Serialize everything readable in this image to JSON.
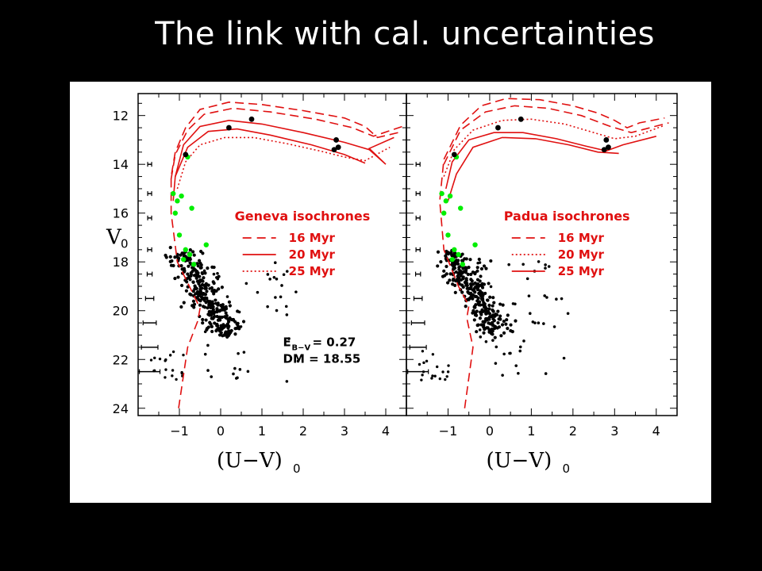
{
  "slide": {
    "title": "The link with cal. uncertainties"
  },
  "colors": {
    "isochrone": "#e01010",
    "highlight": "#00ee00",
    "stars": "#000000",
    "background": "#000000",
    "panel": "#ffffff"
  },
  "chart_data": [
    {
      "type": "scatter",
      "panel": "left",
      "xlabel": "(U−V)",
      "xlabel_sub": "0",
      "ylabel": "V",
      "ylabel_sub": "0",
      "xlim": [
        -2.0,
        4.5
      ],
      "ylim": [
        24.3,
        11.1
      ],
      "x_ticks": [
        "−1",
        "0",
        "1",
        "2",
        "3",
        "4"
      ],
      "y_ticks": [
        "12",
        "14",
        "16",
        "18",
        "20",
        "22",
        "24"
      ],
      "legend_title": "Geneva isochrones",
      "legend": [
        {
          "label": "16 Myr",
          "style": "dashed"
        },
        {
          "label": "20 Myr",
          "style": "solid"
        },
        {
          "label": "25 Myr",
          "style": "dotted"
        }
      ],
      "annotation_ebv_label": "E",
      "annotation_ebv_sub": "B−V",
      "annotation_ebv_value": " = 0.27",
      "annotation_dm": "DM = 18.55",
      "highlighted_stars": [
        {
          "x": -1.15,
          "y": 15.2
        },
        {
          "x": -1.05,
          "y": 15.5
        },
        {
          "x": -0.95,
          "y": 15.3
        },
        {
          "x": -1.1,
          "y": 16.0
        },
        {
          "x": -0.7,
          "y": 15.8
        },
        {
          "x": -1.0,
          "y": 16.9
        },
        {
          "x": -0.85,
          "y": 17.5
        },
        {
          "x": -0.75,
          "y": 17.7
        },
        {
          "x": -0.9,
          "y": 17.9
        },
        {
          "x": -0.65,
          "y": 18.1
        },
        {
          "x": -0.35,
          "y": 17.3
        },
        {
          "x": -0.8,
          "y": 13.7
        }
      ],
      "bright_stars": [
        {
          "x": -0.85,
          "y": 13.6
        },
        {
          "x": 0.2,
          "y": 12.5
        },
        {
          "x": 0.75,
          "y": 12.15
        },
        {
          "x": 2.8,
          "y": 13.0
        },
        {
          "x": 2.75,
          "y": 13.4
        },
        {
          "x": 2.85,
          "y": 13.3
        }
      ],
      "error_bars": [
        {
          "y": 14.0,
          "xerr": 0.03
        },
        {
          "y": 15.2,
          "xerr": 0.03
        },
        {
          "y": 16.2,
          "xerr": 0.04
        },
        {
          "y": 17.5,
          "xerr": 0.05
        },
        {
          "y": 18.5,
          "xerr": 0.06
        },
        {
          "y": 19.5,
          "xerr": 0.1
        },
        {
          "y": 20.5,
          "xerr": 0.16
        },
        {
          "y": 21.5,
          "xerr": 0.2
        },
        {
          "y": 22.5,
          "xerr": 0.25
        }
      ],
      "isochrones": [
        {
          "name": "16 Myr",
          "style": "dashed",
          "points": [
            [
              -1.02,
              24.0
            ],
            [
              -0.8,
              21.5
            ],
            [
              -0.55,
              20.4
            ],
            [
              -0.5,
              19.9
            ],
            [
              -0.7,
              19.2
            ],
            [
              -1.05,
              18.0
            ],
            [
              -1.2,
              16.0
            ],
            [
              -1.2,
              14.5
            ],
            [
              -1.1,
              13.5
            ],
            [
              -0.85,
              12.5
            ],
            [
              -0.5,
              11.75
            ],
            [
              0.2,
              11.45
            ],
            [
              1.0,
              11.55
            ],
            [
              2.0,
              11.8
            ],
            [
              3.0,
              12.1
            ],
            [
              3.5,
              12.45
            ],
            [
              3.8,
              12.9
            ],
            [
              4.3,
              12.7
            ]
          ]
        },
        {
          "name": "16 Myr b",
          "style": "dashed",
          "points": [
            [
              -1.2,
              14.6
            ],
            [
              -1.1,
              13.6
            ],
            [
              -0.8,
              12.6
            ],
            [
              -0.4,
              11.95
            ],
            [
              0.3,
              11.7
            ],
            [
              1.2,
              11.85
            ],
            [
              2.3,
              12.15
            ],
            [
              3.2,
              12.5
            ],
            [
              3.7,
              12.85
            ],
            [
              4.4,
              12.45
            ]
          ]
        },
        {
          "name": "20 Myr",
          "style": "solid",
          "points": [
            [
              -1.15,
              15.5
            ],
            [
              -1.1,
              14.5
            ],
            [
              -0.9,
              13.2
            ],
            [
              -0.5,
              12.45
            ],
            [
              0.2,
              12.2
            ],
            [
              1.0,
              12.35
            ],
            [
              2.0,
              12.7
            ],
            [
              3.0,
              13.1
            ],
            [
              3.6,
              13.4
            ],
            [
              4.0,
              14.0
            ],
            [
              3.6,
              13.35
            ],
            [
              4.2,
              12.9
            ]
          ]
        },
        {
          "name": "20 Myr b",
          "style": "solid",
          "points": [
            [
              -1.1,
              14.5
            ],
            [
              -0.8,
              13.3
            ],
            [
              -0.3,
              12.65
            ],
            [
              0.4,
              12.55
            ],
            [
              1.2,
              12.8
            ],
            [
              2.2,
              13.2
            ],
            [
              3.0,
              13.6
            ],
            [
              3.5,
              13.95
            ]
          ]
        },
        {
          "name": "25 Myr",
          "style": "dotted",
          "points": [
            [
              -1.05,
              15.0
            ],
            [
              -0.85,
              13.9
            ],
            [
              -0.5,
              13.2
            ],
            [
              0.1,
              12.9
            ],
            [
              0.8,
              12.9
            ],
            [
              1.6,
              13.15
            ],
            [
              2.4,
              13.45
            ],
            [
              3.0,
              13.7
            ],
            [
              3.5,
              13.85
            ],
            [
              4.1,
              13.3
            ]
          ]
        }
      ]
    },
    {
      "type": "scatter",
      "panel": "right",
      "xlabel": "(U−V)",
      "xlabel_sub": "0",
      "xlim": [
        -2.0,
        4.5
      ],
      "ylim": [
        24.3,
        11.1
      ],
      "x_ticks": [
        "−1",
        "0",
        "1",
        "2",
        "3",
        "4"
      ],
      "legend_title": "Padua isochrones",
      "legend": [
        {
          "label": "16 Myr",
          "style": "dashed"
        },
        {
          "label": "20 Myr",
          "style": "dotted"
        },
        {
          "label": "25 Myr",
          "style": "solid"
        }
      ],
      "highlighted_stars": [
        {
          "x": -1.15,
          "y": 15.2
        },
        {
          "x": -1.05,
          "y": 15.5
        },
        {
          "x": -0.95,
          "y": 15.3
        },
        {
          "x": -1.1,
          "y": 16.0
        },
        {
          "x": -0.7,
          "y": 15.8
        },
        {
          "x": -1.0,
          "y": 16.9
        },
        {
          "x": -0.85,
          "y": 17.5
        },
        {
          "x": -0.75,
          "y": 17.7
        },
        {
          "x": -0.9,
          "y": 17.9
        },
        {
          "x": -0.65,
          "y": 18.1
        },
        {
          "x": -0.35,
          "y": 17.3
        },
        {
          "x": -0.8,
          "y": 13.7
        }
      ],
      "bright_stars": [
        {
          "x": -0.85,
          "y": 13.6
        },
        {
          "x": 0.2,
          "y": 12.5
        },
        {
          "x": 0.75,
          "y": 12.15
        },
        {
          "x": 2.8,
          "y": 13.0
        },
        {
          "x": 2.75,
          "y": 13.4
        },
        {
          "x": 2.85,
          "y": 13.3
        }
      ],
      "error_bars": [
        {
          "y": 14.0,
          "xerr": 0.03
        },
        {
          "y": 15.2,
          "xerr": 0.03
        },
        {
          "y": 16.2,
          "xerr": 0.04
        },
        {
          "y": 17.5,
          "xerr": 0.05
        },
        {
          "y": 18.5,
          "xerr": 0.06
        },
        {
          "y": 19.5,
          "xerr": 0.1
        },
        {
          "y": 20.5,
          "xerr": 0.16
        },
        {
          "y": 21.5,
          "xerr": 0.2
        },
        {
          "y": 22.5,
          "xerr": 0.25
        }
      ],
      "isochrones": [
        {
          "name": "16 Myr",
          "style": "dashed",
          "points": [
            [
              -0.6,
              24.0
            ],
            [
              -0.4,
              21.5
            ],
            [
              -0.55,
              20.3
            ],
            [
              -0.5,
              19.8
            ],
            [
              -0.75,
              19.0
            ],
            [
              -1.1,
              17.5
            ],
            [
              -1.2,
              15.5
            ],
            [
              -1.1,
              13.8
            ],
            [
              -0.7,
              12.4
            ],
            [
              -0.2,
              11.6
            ],
            [
              0.4,
              11.3
            ],
            [
              1.2,
              11.35
            ],
            [
              2.0,
              11.6
            ],
            [
              2.6,
              11.9
            ],
            [
              3.0,
              12.2
            ],
            [
              3.3,
              12.5
            ],
            [
              3.6,
              12.3
            ],
            [
              4.2,
              12.1
            ]
          ]
        },
        {
          "name": "16 Myr b",
          "style": "dashed",
          "points": [
            [
              -1.1,
              14.0
            ],
            [
              -0.7,
              12.6
            ],
            [
              -0.1,
              11.85
            ],
            [
              0.6,
              11.6
            ],
            [
              1.4,
              11.7
            ],
            [
              2.2,
              12.0
            ],
            [
              2.9,
              12.45
            ],
            [
              3.4,
              12.7
            ],
            [
              4.3,
              12.3
            ]
          ]
        },
        {
          "name": "20 Myr",
          "style": "dotted",
          "points": [
            [
              -1.1,
              14.5
            ],
            [
              -0.85,
              13.4
            ],
            [
              -0.4,
              12.6
            ],
            [
              0.3,
              12.2
            ],
            [
              1.0,
              12.15
            ],
            [
              1.8,
              12.35
            ],
            [
              2.5,
              12.7
            ],
            [
              3.0,
              12.95
            ],
            [
              3.5,
              12.85
            ],
            [
              4.2,
              12.4
            ]
          ]
        },
        {
          "name": "25 Myr",
          "style": "solid",
          "points": [
            [
              -1.05,
              15.0
            ],
            [
              -0.9,
              13.9
            ],
            [
              -0.5,
              13.0
            ],
            [
              0.1,
              12.7
            ],
            [
              0.8,
              12.7
            ],
            [
              1.6,
              12.95
            ],
            [
              2.3,
              13.25
            ],
            [
              2.8,
              13.45
            ],
            [
              3.2,
              13.2
            ],
            [
              4.0,
              12.85
            ]
          ]
        },
        {
          "name": "25 Myr b",
          "style": "solid",
          "points": [
            [
              -1.0,
              15.5
            ],
            [
              -0.8,
              14.4
            ],
            [
              -0.4,
              13.3
            ],
            [
              0.3,
              12.9
            ],
            [
              1.1,
              12.95
            ],
            [
              1.9,
              13.2
            ],
            [
              2.6,
              13.5
            ],
            [
              3.1,
              13.55
            ]
          ]
        }
      ]
    }
  ]
}
